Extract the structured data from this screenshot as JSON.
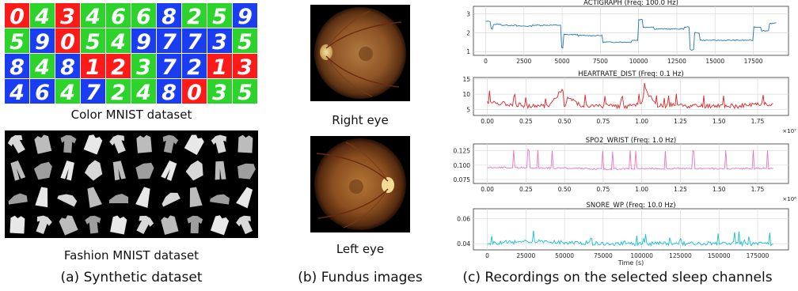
{
  "panel_a": {
    "color_mnist": {
      "caption": "Color MNIST dataset",
      "rows": [
        [
          {
            "d": "0",
            "bg": "red"
          },
          {
            "d": "4",
            "bg": "green"
          },
          {
            "d": "3",
            "bg": "red"
          },
          {
            "d": "4",
            "bg": "green"
          },
          {
            "d": "6",
            "bg": "green"
          },
          {
            "d": "6",
            "bg": "green"
          },
          {
            "d": "8",
            "bg": "blue"
          },
          {
            "d": "2",
            "bg": "green"
          },
          {
            "d": "5",
            "bg": "green"
          },
          {
            "d": "9",
            "bg": "blue"
          }
        ],
        [
          {
            "d": "5",
            "bg": "green"
          },
          {
            "d": "9",
            "bg": "blue"
          },
          {
            "d": "0",
            "bg": "red"
          },
          {
            "d": "5",
            "bg": "green"
          },
          {
            "d": "4",
            "bg": "green"
          },
          {
            "d": "9",
            "bg": "blue"
          },
          {
            "d": "7",
            "bg": "blue"
          },
          {
            "d": "7",
            "bg": "blue"
          },
          {
            "d": "3",
            "bg": "blue"
          },
          {
            "d": "5",
            "bg": "green"
          }
        ],
        [
          {
            "d": "8",
            "bg": "blue"
          },
          {
            "d": "4",
            "bg": "green"
          },
          {
            "d": "8",
            "bg": "blue"
          },
          {
            "d": "1",
            "bg": "red"
          },
          {
            "d": "2",
            "bg": "red"
          },
          {
            "d": "3",
            "bg": "green"
          },
          {
            "d": "7",
            "bg": "blue"
          },
          {
            "d": "2",
            "bg": "blue"
          },
          {
            "d": "1",
            "bg": "red"
          },
          {
            "d": "3",
            "bg": "red"
          }
        ],
        [
          {
            "d": "4",
            "bg": "blue"
          },
          {
            "d": "6",
            "bg": "blue"
          },
          {
            "d": "4",
            "bg": "green"
          },
          {
            "d": "7",
            "bg": "blue"
          },
          {
            "d": "2",
            "bg": "green"
          },
          {
            "d": "4",
            "bg": "green"
          },
          {
            "d": "8",
            "bg": "blue"
          },
          {
            "d": "0",
            "bg": "red"
          },
          {
            "d": "3",
            "bg": "green"
          },
          {
            "d": "5",
            "bg": "green"
          }
        ]
      ],
      "palette": {
        "red": "#ff1a1a",
        "green": "#2bd32b",
        "blue": "#1a3cf2"
      }
    },
    "fashion_mnist": {
      "caption": "Fashion MNIST dataset"
    },
    "subcaption": "(a) Synthetic dataset"
  },
  "panel_b": {
    "right_eye_caption": "Right eye",
    "left_eye_caption": "Left eye",
    "subcaption": "(b) Fundus images"
  },
  "panel_c": {
    "subcaption": "(c) Recordings on the selected sleep channels"
  },
  "chart_data": [
    {
      "type": "line",
      "title": "ACTIGRAPH (Freq: 100.0 Hz)",
      "color": "#1f77b4",
      "xlim": [
        -800,
        19800
      ],
      "ylim": [
        0.8,
        3.4
      ],
      "xticks": [
        0,
        2500,
        5000,
        7500,
        10000,
        12500,
        15000,
        17500
      ],
      "xtick_labels": [
        "0",
        "2500",
        "5000",
        "7500",
        "10000",
        "12500",
        "15000",
        "17500"
      ],
      "yticks": [
        1,
        2,
        3
      ],
      "ytick_labels": [
        "1",
        "2",
        "3"
      ],
      "x_exp": "",
      "xlabel": "",
      "series": [
        {
          "name": "",
          "x": [
            0,
            300,
            500,
            1000,
            2000,
            3000,
            4000,
            4500,
            4900,
            5100,
            6000,
            7000,
            7600,
            8500,
            9500,
            10000,
            10300,
            11000,
            12000,
            13000,
            13300,
            13600,
            14000,
            15000,
            16000,
            17000,
            17500,
            18000,
            18500,
            19000
          ],
          "y": [
            2.6,
            2.2,
            2.45,
            2.4,
            2.35,
            2.4,
            2.4,
            2.4,
            1.2,
            1.9,
            1.85,
            1.85,
            1.5,
            1.5,
            1.6,
            2.7,
            2.3,
            2.2,
            2.2,
            2.3,
            1.1,
            2.0,
            1.6,
            1.6,
            1.6,
            1.6,
            2.3,
            2.1,
            2.5,
            2.2
          ]
        }
      ]
    },
    {
      "type": "line",
      "title": "HEARTRATE_DIST (Freq: 0.1 Hz)",
      "color": "#d62728",
      "xlim": [
        -0.09,
        1.95
      ],
      "ylim": [
        3,
        15.5
      ],
      "xticks": [
        0,
        0.25,
        0.5,
        0.75,
        1.0,
        1.25,
        1.5,
        1.75
      ],
      "xtick_labels": [
        "0.00",
        "0.25",
        "0.50",
        "0.75",
        "1.00",
        "1.25",
        "1.50",
        "1.75"
      ],
      "yticks": [
        5,
        10,
        15
      ],
      "ytick_labels": [
        "5",
        "10",
        "15"
      ],
      "x_exp": "×10⁷",
      "xlabel": "",
      "series": [
        {
          "name": "",
          "x": [
            0,
            0.1,
            0.2,
            0.3,
            0.4,
            0.49,
            0.5,
            0.52,
            0.6,
            0.7,
            0.8,
            0.9,
            1.0,
            1.02,
            1.1,
            1.2,
            1.3,
            1.4,
            1.5,
            1.6,
            1.7,
            1.8,
            1.85
          ],
          "y": [
            7.5,
            7.0,
            6.5,
            6.0,
            6.2,
            12.0,
            5.0,
            9.0,
            6.5,
            6.0,
            6.2,
            6.0,
            6.5,
            11.5,
            6.0,
            6.5,
            6.0,
            6.0,
            6.2,
            6.0,
            6.3,
            7.0,
            6.5
          ]
        }
      ]
    },
    {
      "type": "line",
      "title": "SPO2_WRIST (Freq: 1.0 Hz)",
      "color": "#e377c2",
      "xlim": [
        -0.09,
        1.95
      ],
      "ylim": [
        0.068,
        0.137
      ],
      "xticks": [
        0,
        0.25,
        0.5,
        0.75,
        1.0,
        1.25,
        1.5,
        1.75
      ],
      "xtick_labels": [
        "0.00",
        "0.25",
        "0.50",
        "0.75",
        "1.00",
        "1.25",
        "1.50",
        "1.75"
      ],
      "yticks": [
        0.075,
        0.1,
        0.125
      ],
      "ytick_labels": [
        "0.075",
        "0.100",
        "0.125"
      ],
      "x_exp": "×10⁶",
      "xlabel": "",
      "series": [
        {
          "name": "",
          "x": [
            0,
            0.5,
            0.75,
            1.0,
            1.25,
            1.5,
            1.85
          ],
          "y": [
            0.096,
            0.095,
            0.093,
            0.094,
            0.094,
            0.094,
            0.094
          ]
        }
      ]
    },
    {
      "type": "line",
      "title": "SNORE_WP (Freq: 10.0 Hz)",
      "color": "#17becf",
      "xlim": [
        -9000,
        195000
      ],
      "ylim": [
        0.035,
        0.068
      ],
      "xticks": [
        0,
        25000,
        50000,
        75000,
        100000,
        125000,
        150000,
        175000
      ],
      "xtick_labels": [
        "0",
        "25000",
        "50000",
        "75000",
        "100000",
        "125000",
        "150000",
        "175000"
      ],
      "yticks": [
        0.04,
        0.06
      ],
      "ytick_labels": [
        "0.04",
        "0.06"
      ],
      "x_exp": "",
      "xlabel": "Time (s)",
      "series": [
        {
          "name": "",
          "x": [
            0,
            25000,
            50000,
            75000,
            100000,
            125000,
            150000,
            175000,
            185000
          ],
          "y": [
            0.04,
            0.042,
            0.041,
            0.04,
            0.04,
            0.04,
            0.04,
            0.04,
            0.04
          ]
        }
      ]
    }
  ]
}
